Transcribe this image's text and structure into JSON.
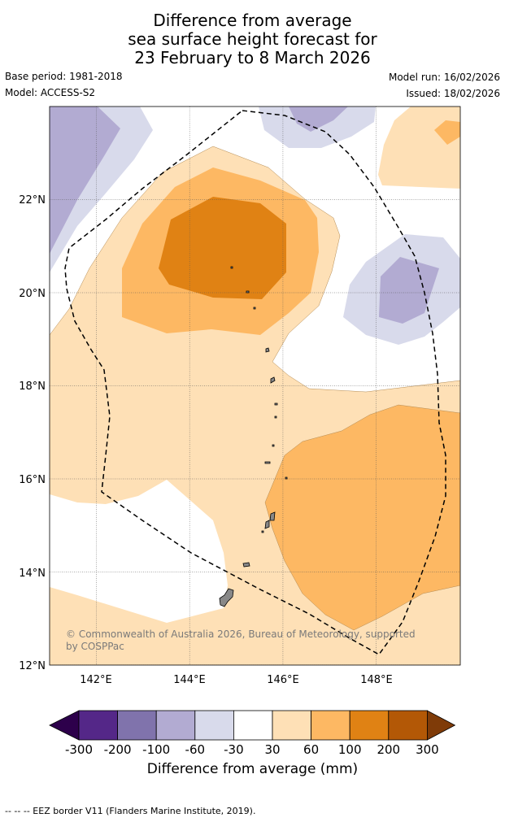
{
  "title": {
    "line1": "Difference from average",
    "line2": "sea surface height forecast for",
    "line3": "23 February to 8 March 2026"
  },
  "meta": {
    "base_period": "Base period: 1981-2018",
    "model": "Model: ACCESS-S2",
    "model_run": "Model run: 16/02/2026",
    "issued": "Issued: 18/02/2026"
  },
  "map": {
    "lon_range": [
      141.0,
      149.8
    ],
    "lat_range": [
      12.0,
      24.0
    ],
    "lon_ticks": [
      "142°E",
      "144°E",
      "146°E",
      "148°E"
    ],
    "lon_tick_values": [
      142,
      144,
      146,
      148
    ],
    "lat_ticks": [
      "12°N",
      "14°N",
      "16°N",
      "18°N",
      "20°N",
      "22°N"
    ],
    "lat_tick_values": [
      12,
      14,
      16,
      18,
      20,
      22
    ],
    "gridlines": true,
    "copyright_line1": "© Commonwealth of Australia 2026, Bureau of Meteorology, supported",
    "copyright_line2": "by COSPPac",
    "colors": {
      "n300": "#2d004b",
      "n200": "#542788",
      "n100": "#8073ac",
      "n60": "#b2abd2",
      "n30": "#d8daeb",
      "zero": "#ffffff",
      "p30": "#fee0b6",
      "p60": "#fdb863",
      "p100": "#e08214",
      "p200": "#b35806",
      "p300": "#7f3b08"
    }
  },
  "colorbar": {
    "tick_labels": [
      "-300",
      "-200",
      "-100",
      "-60",
      "-30",
      "30",
      "60",
      "100",
      "200",
      "300"
    ],
    "label": "Difference from average (mm)",
    "colors": [
      "#2d004b",
      "#542788",
      "#8073ac",
      "#b2abd2",
      "#d8daeb",
      "#ffffff",
      "#fee0b6",
      "#fdb863",
      "#e08214",
      "#b35806",
      "#7f3b08"
    ]
  },
  "footnote": "--  --  -- EEZ border V11 (Flanders Marine Institute, 2019)."
}
